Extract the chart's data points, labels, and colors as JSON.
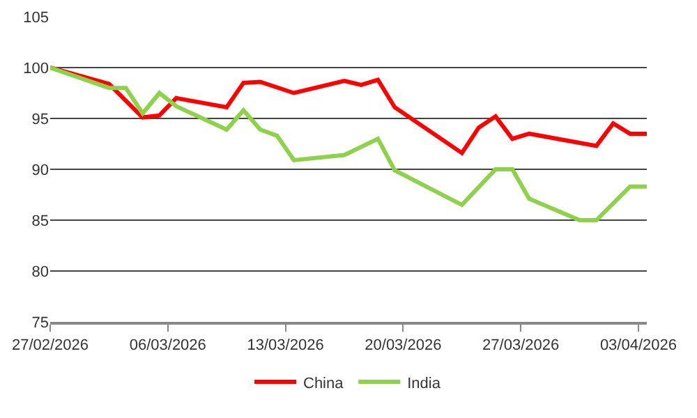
{
  "chart_data": {
    "type": "line",
    "xlim": [
      "2026-02-27",
      "2026-04-03T12:00"
    ],
    "xticks": [
      {
        "value": "2026-02-27",
        "label": "27/02/2026"
      },
      {
        "value": "2026-03-06",
        "label": "06/03/2026"
      },
      {
        "value": "2026-03-13",
        "label": "13/03/2026"
      },
      {
        "value": "2026-03-20",
        "label": "20/03/2026"
      },
      {
        "value": "2026-03-27",
        "label": "27/03/2026"
      },
      {
        "value": "2026-04-03",
        "label": "03/04/2026"
      }
    ],
    "ylim": [
      75,
      105
    ],
    "yticks": [
      75,
      80,
      85,
      90,
      95,
      100,
      105
    ],
    "grid": "y",
    "legend": "bottom",
    "marker": "none",
    "line_style": "solid",
    "series": [
      {
        "name": "China",
        "color": "#ff0000",
        "x": [
          "2026-02-27",
          "2026-03-02T12:00",
          "2026-03-04T12:00",
          "2026-03-05T12:00",
          "2026-03-06T12:00",
          "2026-03-09T12:00",
          "2026-03-10T12:00",
          "2026-03-11T12:00",
          "2026-03-13T12:00",
          "2026-03-16T12:00",
          "2026-03-17T12:00",
          "2026-03-18T12:00",
          "2026-03-19T12:00",
          "2026-03-23T12:00",
          "2026-03-24T12:00",
          "2026-03-25T12:00",
          "2026-03-26T12:00",
          "2026-03-27T12:00",
          "2026-03-31T12:00",
          "2026-04-01T12:00",
          "2026-04-02T12:00",
          "2026-04-03T12:00"
        ],
        "values": [
          100,
          98.4,
          95.1,
          95.3,
          97.0,
          96.1,
          98.5,
          98.6,
          97.5,
          98.7,
          98.3,
          98.8,
          96.1,
          91.6,
          94.1,
          95.2,
          93.0,
          93.5,
          92.3,
          94.5,
          93.5,
          93.5
        ]
      },
      {
        "name": "India",
        "color": "#8ed14b",
        "x": [
          "2026-02-27",
          "2026-03-02T12:00",
          "2026-03-03T12:00",
          "2026-03-04T12:00",
          "2026-03-05T12:00",
          "2026-03-06T12:00",
          "2026-03-09T12:00",
          "2026-03-10T12:00",
          "2026-03-11T12:00",
          "2026-03-12T12:00",
          "2026-03-13T12:00",
          "2026-03-16T12:00",
          "2026-03-18T12:00",
          "2026-03-19T12:00",
          "2026-03-23T12:00",
          "2026-03-25T12:00",
          "2026-03-26T12:00",
          "2026-03-27T12:00",
          "2026-03-30T12:00",
          "2026-03-31T12:00",
          "2026-04-02T12:00",
          "2026-04-03T12:00"
        ],
        "values": [
          100,
          98.0,
          98.0,
          95.5,
          97.5,
          96.2,
          93.9,
          95.8,
          93.9,
          93.3,
          90.9,
          91.4,
          93.0,
          89.9,
          86.5,
          90.0,
          90.0,
          87.1,
          85.0,
          85.0,
          88.3,
          88.3
        ]
      }
    ]
  }
}
